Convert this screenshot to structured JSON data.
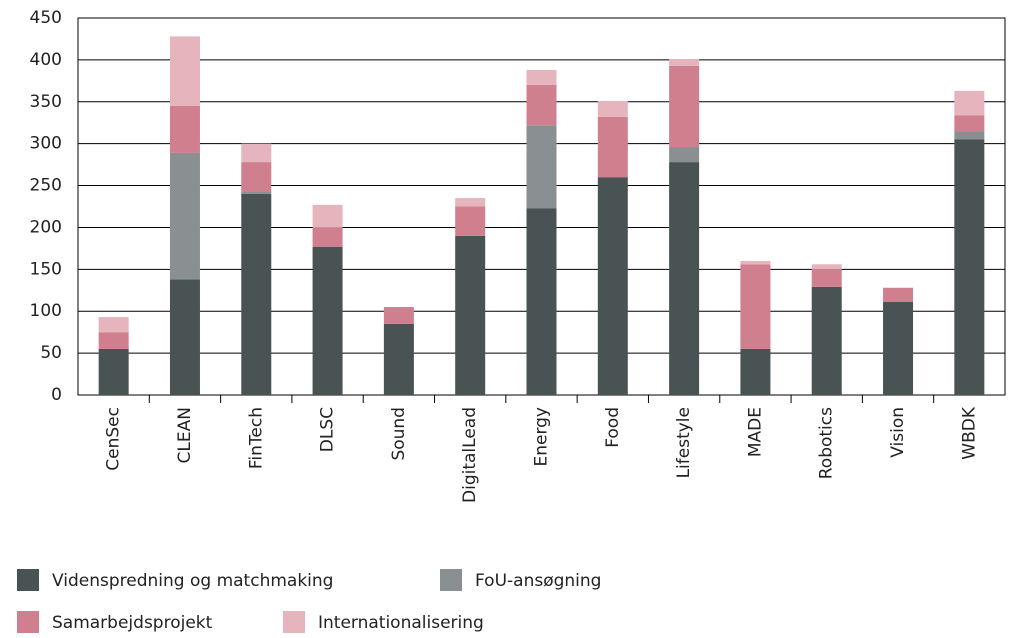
{
  "chart_data": {
    "type": "stacked_bar",
    "categories": [
      "CenSec",
      "CLEAN",
      "FinTech",
      "DLSC",
      "Sound",
      "DigitalLead",
      "Energy",
      "Food",
      "Lifestyle",
      "MADE",
      "Robotics",
      "Vision",
      "WBDK"
    ],
    "series": [
      {
        "name": "Videnspredning og matchmaking",
        "color": "#4a5354",
        "values": [
          55,
          138,
          240,
          177,
          85,
          190,
          223,
          260,
          278,
          55,
          129,
          111,
          305
        ]
      },
      {
        "name": "FoU-ansøgning",
        "color": "#8a8f91",
        "values": [
          0,
          151,
          3,
          0,
          0,
          0,
          99,
          0,
          18,
          0,
          0,
          0,
          10
        ]
      },
      {
        "name": "Samarbejdsprojekt",
        "color": "#cf7f8e",
        "values": [
          20,
          56,
          35,
          23,
          20,
          35,
          48,
          72,
          97,
          101,
          21,
          17,
          19
        ]
      },
      {
        "name": "Internationalisering",
        "color": "#e6b4bd",
        "values": [
          18,
          83,
          22,
          27,
          0,
          10,
          18,
          19,
          8,
          4,
          6,
          0,
          29
        ]
      }
    ],
    "ylim": [
      0,
      450
    ],
    "yticks": [
      0,
      50,
      100,
      150,
      200,
      250,
      300,
      350,
      400,
      450
    ],
    "grid": true
  }
}
